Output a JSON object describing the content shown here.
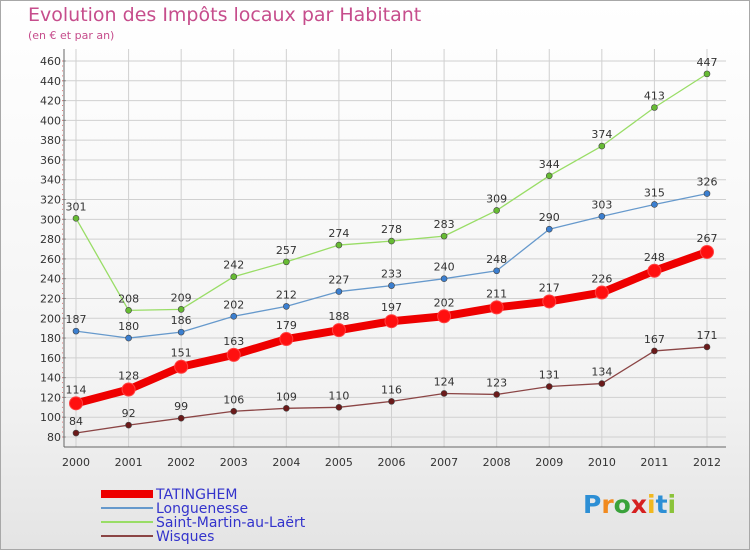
{
  "chart_data": {
    "type": "line",
    "title": "Evolution des Impôts locaux par Habitant",
    "subtitle": "(en € et par an)",
    "categories": [
      "2000",
      "2001",
      "2002",
      "2003",
      "2004",
      "2005",
      "2006",
      "2007",
      "2008",
      "2009",
      "2010",
      "2011",
      "2012"
    ],
    "ylim": [
      80,
      460
    ],
    "yticks": [
      80,
      100,
      120,
      140,
      160,
      180,
      200,
      220,
      240,
      260,
      280,
      300,
      320,
      340,
      360,
      380,
      400,
      420,
      440,
      460
    ],
    "grid": true,
    "legend_placement": "bottom-left",
    "series": [
      {
        "name": "TATINGHEM",
        "color": "#ee0000",
        "marker_color": "#ff1010",
        "values": [
          114,
          128,
          151,
          163,
          179,
          188,
          197,
          202,
          211,
          217,
          226,
          248,
          267
        ]
      },
      {
        "name": "Longuenesse",
        "color": "#6699cc",
        "marker_color": "#3b7fd0",
        "values": [
          187,
          180,
          186,
          202,
          212,
          227,
          233,
          240,
          248,
          290,
          303,
          315,
          326
        ]
      },
      {
        "name": "Saint-Martin-au-Laërt",
        "color": "#99dd66",
        "marker_color": "#66bb33",
        "values": [
          301,
          208,
          209,
          242,
          257,
          274,
          278,
          283,
          309,
          344,
          374,
          413,
          447
        ]
      },
      {
        "name": "Wisques",
        "color": "#8b4545",
        "marker_color": "#6b1a1a",
        "values": [
          84,
          92,
          99,
          106,
          109,
          110,
          116,
          124,
          123,
          131,
          134,
          167,
          171
        ]
      }
    ]
  },
  "logo": {
    "text": "Proxiti"
  },
  "colors": {
    "title": "#c64d8c",
    "grid": "#d0d0d0",
    "legend_text": "#3333cc"
  }
}
